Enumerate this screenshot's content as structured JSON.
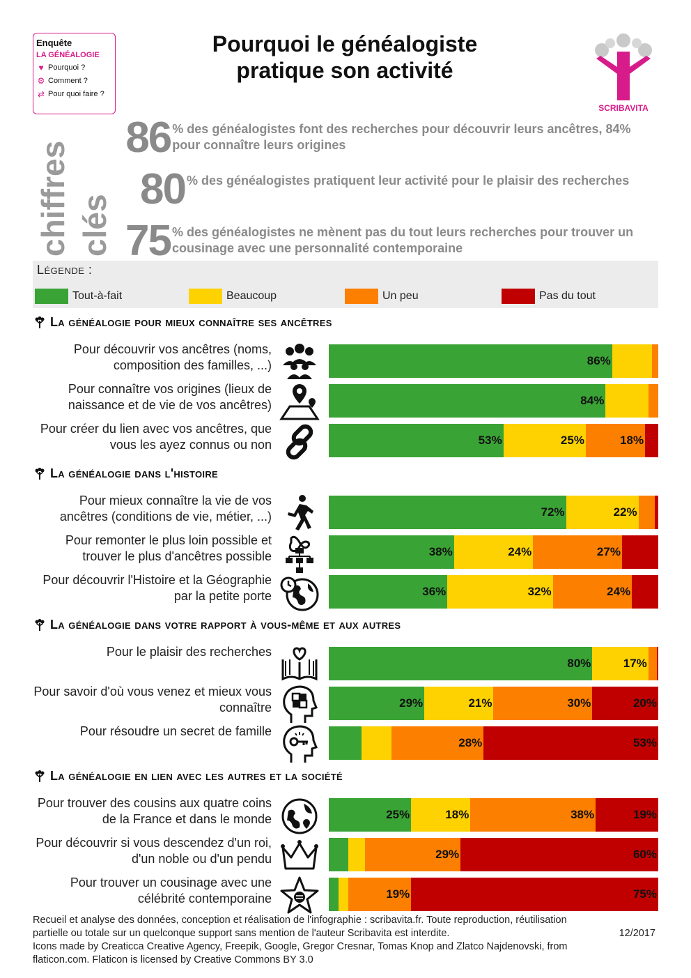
{
  "badge": {
    "title": "Enquête",
    "subtitle": "LA GÉNÉALOGIE",
    "items": [
      {
        "icon": "heart-icon",
        "label": "Pourquoi ?"
      },
      {
        "icon": "gears-icon",
        "label": "Comment ?"
      },
      {
        "icon": "exchange-arrows-icon",
        "label": "Pour quoi faire ?"
      }
    ]
  },
  "header": {
    "title_line1": "Pourquoi le généalogiste",
    "title_line2": "pratique son activité",
    "brand": "SCRIBAVITA"
  },
  "key_figures": {
    "label_line1": "chiffres",
    "label_line2": "clés",
    "items": [
      {
        "number": "86",
        "text": "% des généalogistes font des recherches pour découvrir leurs ancêtres, 84% pour connaître leurs origines"
      },
      {
        "number": "80",
        "text": "% des généalogistes pratiquent leur activité pour le plaisir des recherches"
      },
      {
        "number": "75",
        "text": "% des généalogistes ne mènent pas du tout leurs recherches pour trouver un cousinage avec une personnalité contemporaine"
      }
    ]
  },
  "legend": {
    "title": "Légende :",
    "items": [
      {
        "label": "Tout-à-fait",
        "color": "#3aa335"
      },
      {
        "label": "Beaucoup",
        "color": "#fdd200"
      },
      {
        "label": "Un peu",
        "color": "#fd7f00"
      },
      {
        "label": "Pas du tout",
        "color": "#c00000"
      }
    ]
  },
  "chart_data": {
    "type": "bar",
    "orientation": "horizontal",
    "stacked": true,
    "series_names": [
      "Tout-à-fait",
      "Beaucoup",
      "Un peu",
      "Pas du tout"
    ],
    "colors": [
      "#3aa335",
      "#fdd200",
      "#fd7f00",
      "#c00000"
    ],
    "sections": [
      {
        "title": "La généalogie pour mieux connaître ses ancêtres",
        "questions": [
          {
            "label": "Pour découvrir vos ancêtres (noms, composition des familles, ...)",
            "icon": "family-group-icon",
            "values": [
              86,
              12,
              2,
              0
            ],
            "labels": [
              "86%",
              "",
              "",
              ""
            ]
          },
          {
            "label": "Pour connaître vos origines (lieux de naissance et de vie de vos ancêtres)",
            "icon": "map-pins-icon",
            "values": [
              84,
              13,
              3,
              0
            ],
            "labels": [
              "84%",
              "",
              "",
              ""
            ]
          },
          {
            "label": "Pour créer du lien avec vos ancêtres, que vous les ayez connus ou non",
            "icon": "chain-link-icon",
            "values": [
              53,
              25,
              18,
              4
            ],
            "labels": [
              "53%",
              "25%",
              "18%",
              ""
            ]
          }
        ]
      },
      {
        "title": "La généalogie dans l'histoire",
        "questions": [
          {
            "label": "Pour mieux connaître la vie de vos ancêtres (conditions de vie, métier, ...)",
            "icon": "walking-person-icon",
            "values": [
              72,
              22,
              5,
              1
            ],
            "labels": [
              "72%",
              "22%",
              "",
              ""
            ]
          },
          {
            "label": "Pour remonter le plus loin possible et trouver le plus d'ancêtres possible",
            "icon": "family-tree-infinity-icon",
            "values": [
              38,
              24,
              27,
              11
            ],
            "labels": [
              "38%",
              "24%",
              "27%",
              ""
            ]
          },
          {
            "label": "Pour découvrir l'Histoire et la Géographie par la petite porte",
            "icon": "globe-history-icon",
            "values": [
              36,
              32,
              24,
              8
            ],
            "labels": [
              "36%",
              "32%",
              "24%",
              ""
            ]
          }
        ]
      },
      {
        "title": "La généalogie dans votre rapport à vous-même et aux autres",
        "questions": [
          {
            "label": "Pour le plaisir des recherches",
            "icon": "heart-book-icon",
            "values": [
              80,
              17,
              2.5,
              0.5
            ],
            "labels": [
              "80%",
              "17%",
              "",
              ""
            ]
          },
          {
            "label": "Pour savoir d'où vous venez et mieux vous connaître",
            "icon": "puzzle-head-icon",
            "values": [
              29,
              21,
              30,
              20
            ],
            "labels": [
              "29%",
              "21%",
              "30%",
              "20%"
            ]
          },
          {
            "label": "Pour résoudre un secret de famille",
            "icon": "key-head-icon",
            "values": [
              10,
              9,
              28,
              53
            ],
            "labels": [
              "",
              "",
              "28%",
              "53%"
            ]
          }
        ]
      },
      {
        "title": "La généalogie en lien avec les autres et la société",
        "questions": [
          {
            "label": "Pour trouver des cousins aux quatre coins de la France et dans le monde",
            "icon": "globe-pins-icon",
            "values": [
              25,
              18,
              38,
              19
            ],
            "labels": [
              "25%",
              "18%",
              "38%",
              "19%"
            ]
          },
          {
            "label": "Pour découvrir si vous descendez d'un roi, d'un noble ou d'un pendu",
            "icon": "crown-icon",
            "values": [
              6,
              5,
              29,
              60
            ],
            "labels": [
              "",
              "",
              "29%",
              "60%"
            ]
          },
          {
            "label": "Pour trouver un cousinage avec une célébrité contemporaine",
            "icon": "star-icon",
            "values": [
              3,
              3,
              19,
              75
            ],
            "labels": [
              "",
              "",
              "19%",
              "75%"
            ]
          }
        ]
      }
    ]
  },
  "footer": {
    "line1": "Recueil et analyse des données, conception et réalisation de l'infographie : scribavita.fr. Toute reproduction, réutilisation",
    "line2": "partielle ou totale sur un quelconque support sans mention de l'auteur Scribavita est interdite.",
    "date": "12/2017",
    "line3": "Icons made by Creaticca Creative Agency, Freepik, Google, Gregor Cresnar, Tomas Knop and Zlatco Najdenovski, from",
    "line4": "flaticon.com. Flaticon is licensed by Creative Commons BY 3.0"
  }
}
